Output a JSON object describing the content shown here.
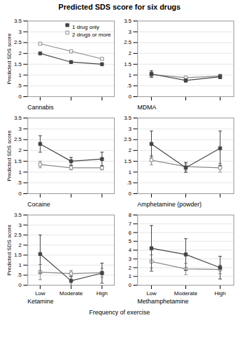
{
  "title": "Predicted SDS score for six drugs",
  "xlabel": "Frequency of exercise",
  "chart_data": [
    {
      "type": "line",
      "title": "Cannabis",
      "ylabel": "Predicted SDS score",
      "categories": [
        "Low",
        "Moderate",
        "High"
      ],
      "series": [
        {
          "name": "1 drug only",
          "color": "#444444",
          "marker": "square",
          "values": [
            2.0,
            1.6,
            1.5
          ],
          "errors": [
            0.0,
            0.0,
            0.0
          ]
        },
        {
          "name": "2 drugs or more",
          "color": "#888888",
          "marker": "square_open",
          "values": [
            2.45,
            2.1,
            1.75
          ],
          "errors": [
            0.0,
            0.0,
            0.0
          ]
        }
      ],
      "ylim": [
        0,
        3.5
      ],
      "yticks": [
        0,
        {
          "value": 0.5,
          "label": ".5"
        },
        1,
        1.5,
        2,
        2.5,
        3,
        3.5
      ],
      "grid": true,
      "legend": "upper right",
      "tick_labels": "y"
    },
    {
      "type": "line",
      "title": "MDMA",
      "categories": [
        "Low",
        "Moderate",
        "High"
      ],
      "series": [
        {
          "name": "1 drug only",
          "color": "#444444",
          "marker": "square",
          "values": [
            1.05,
            0.75,
            0.92
          ],
          "errors": [
            0.15,
            0.08,
            0.09
          ]
        },
        {
          "name": "2 drugs or more",
          "color": "#888888",
          "marker": "square_open",
          "values": [
            1.02,
            0.88,
            0.95
          ],
          "errors": [
            0.12,
            0.07,
            0.08
          ]
        }
      ],
      "ylim": [
        0,
        3.5
      ],
      "yticks": [
        0,
        {
          "value": 0.5,
          "label": ".5"
        },
        1,
        1.5,
        2,
        2.5,
        3,
        3.5
      ],
      "grid": true,
      "tick_labels": "y"
    },
    {
      "type": "line",
      "title": "Cocaine",
      "ylabel": "Predicted SDS score",
      "categories": [
        "Low",
        "Moderate",
        "High"
      ],
      "series": [
        {
          "name": "1 drug only",
          "color": "#444444",
          "marker": "square",
          "values": [
            2.3,
            1.5,
            1.6
          ],
          "errors": [
            0.38,
            0.18,
            0.32
          ]
        },
        {
          "name": "2 drugs or more",
          "color": "#888888",
          "marker": "square_open",
          "values": [
            1.35,
            1.2,
            1.2
          ],
          "errors": [
            0.15,
            0.1,
            0.1
          ]
        }
      ],
      "ylim": [
        0,
        3.5
      ],
      "yticks": [
        0,
        {
          "value": 0.5,
          "label": ".5"
        },
        1,
        1.5,
        2,
        2.5,
        3,
        3.5
      ],
      "grid": true,
      "tick_labels": "y"
    },
    {
      "type": "line",
      "title": "Amphetamine (powder)",
      "categories": [
        "Low",
        "Moderate",
        "High"
      ],
      "series": [
        {
          "name": "1 drug only",
          "color": "#444444",
          "marker": "square",
          "values": [
            2.3,
            1.2,
            2.1
          ],
          "errors": [
            0.6,
            0.22,
            0.8
          ]
        },
        {
          "name": "2 drugs or more",
          "color": "#888888",
          "marker": "square_open",
          "values": [
            1.55,
            1.25,
            1.2
          ],
          "errors": [
            0.22,
            0.2,
            0.2
          ]
        }
      ],
      "ylim": [
        0,
        3.5
      ],
      "yticks": [
        0,
        {
          "value": 0.5,
          "label": ".5"
        },
        1,
        1.5,
        2,
        2.5,
        3,
        3.5
      ],
      "grid": true,
      "tick_labels": "y"
    },
    {
      "type": "line",
      "title": "Ketamine",
      "ylabel": "Predicted SDS score",
      "categories": [
        "Low",
        "Moderate",
        "High"
      ],
      "series": [
        {
          "name": "1 drug only",
          "color": "#444444",
          "marker": "square",
          "values": [
            1.55,
            0.22,
            0.6
          ],
          "errors": [
            0.95,
            0.22,
            0.5
          ]
        },
        {
          "name": "2 drugs or more",
          "color": "#888888",
          "marker": "square_open",
          "values": [
            0.65,
            0.58,
            0.62
          ],
          "errors": [
            0.38,
            0.15,
            0.22
          ]
        }
      ],
      "ylim": [
        0,
        3.5
      ],
      "yticks": [
        0,
        {
          "value": 0.5,
          "label": ".5"
        },
        1,
        1.5,
        2,
        2.5,
        3,
        3.5
      ],
      "grid": true
    },
    {
      "type": "line",
      "title": "Methamphetamine",
      "categories": [
        "Low",
        "Moderate",
        "High"
      ],
      "series": [
        {
          "name": "1 drug only",
          "color": "#444444",
          "marker": "square",
          "values": [
            4.2,
            3.5,
            2.0
          ],
          "errors": [
            2.6,
            1.8,
            1.3
          ]
        },
        {
          "name": "2 drugs or more",
          "color": "#888888",
          "marker": "square_open",
          "values": [
            2.7,
            1.85,
            1.8
          ],
          "errors": [
            0.75,
            0.65,
            0.5
          ]
        }
      ],
      "ylim": [
        0,
        8
      ],
      "yticks": [
        0,
        1,
        2,
        3,
        4,
        5,
        6,
        7,
        8
      ],
      "grid": true
    }
  ]
}
